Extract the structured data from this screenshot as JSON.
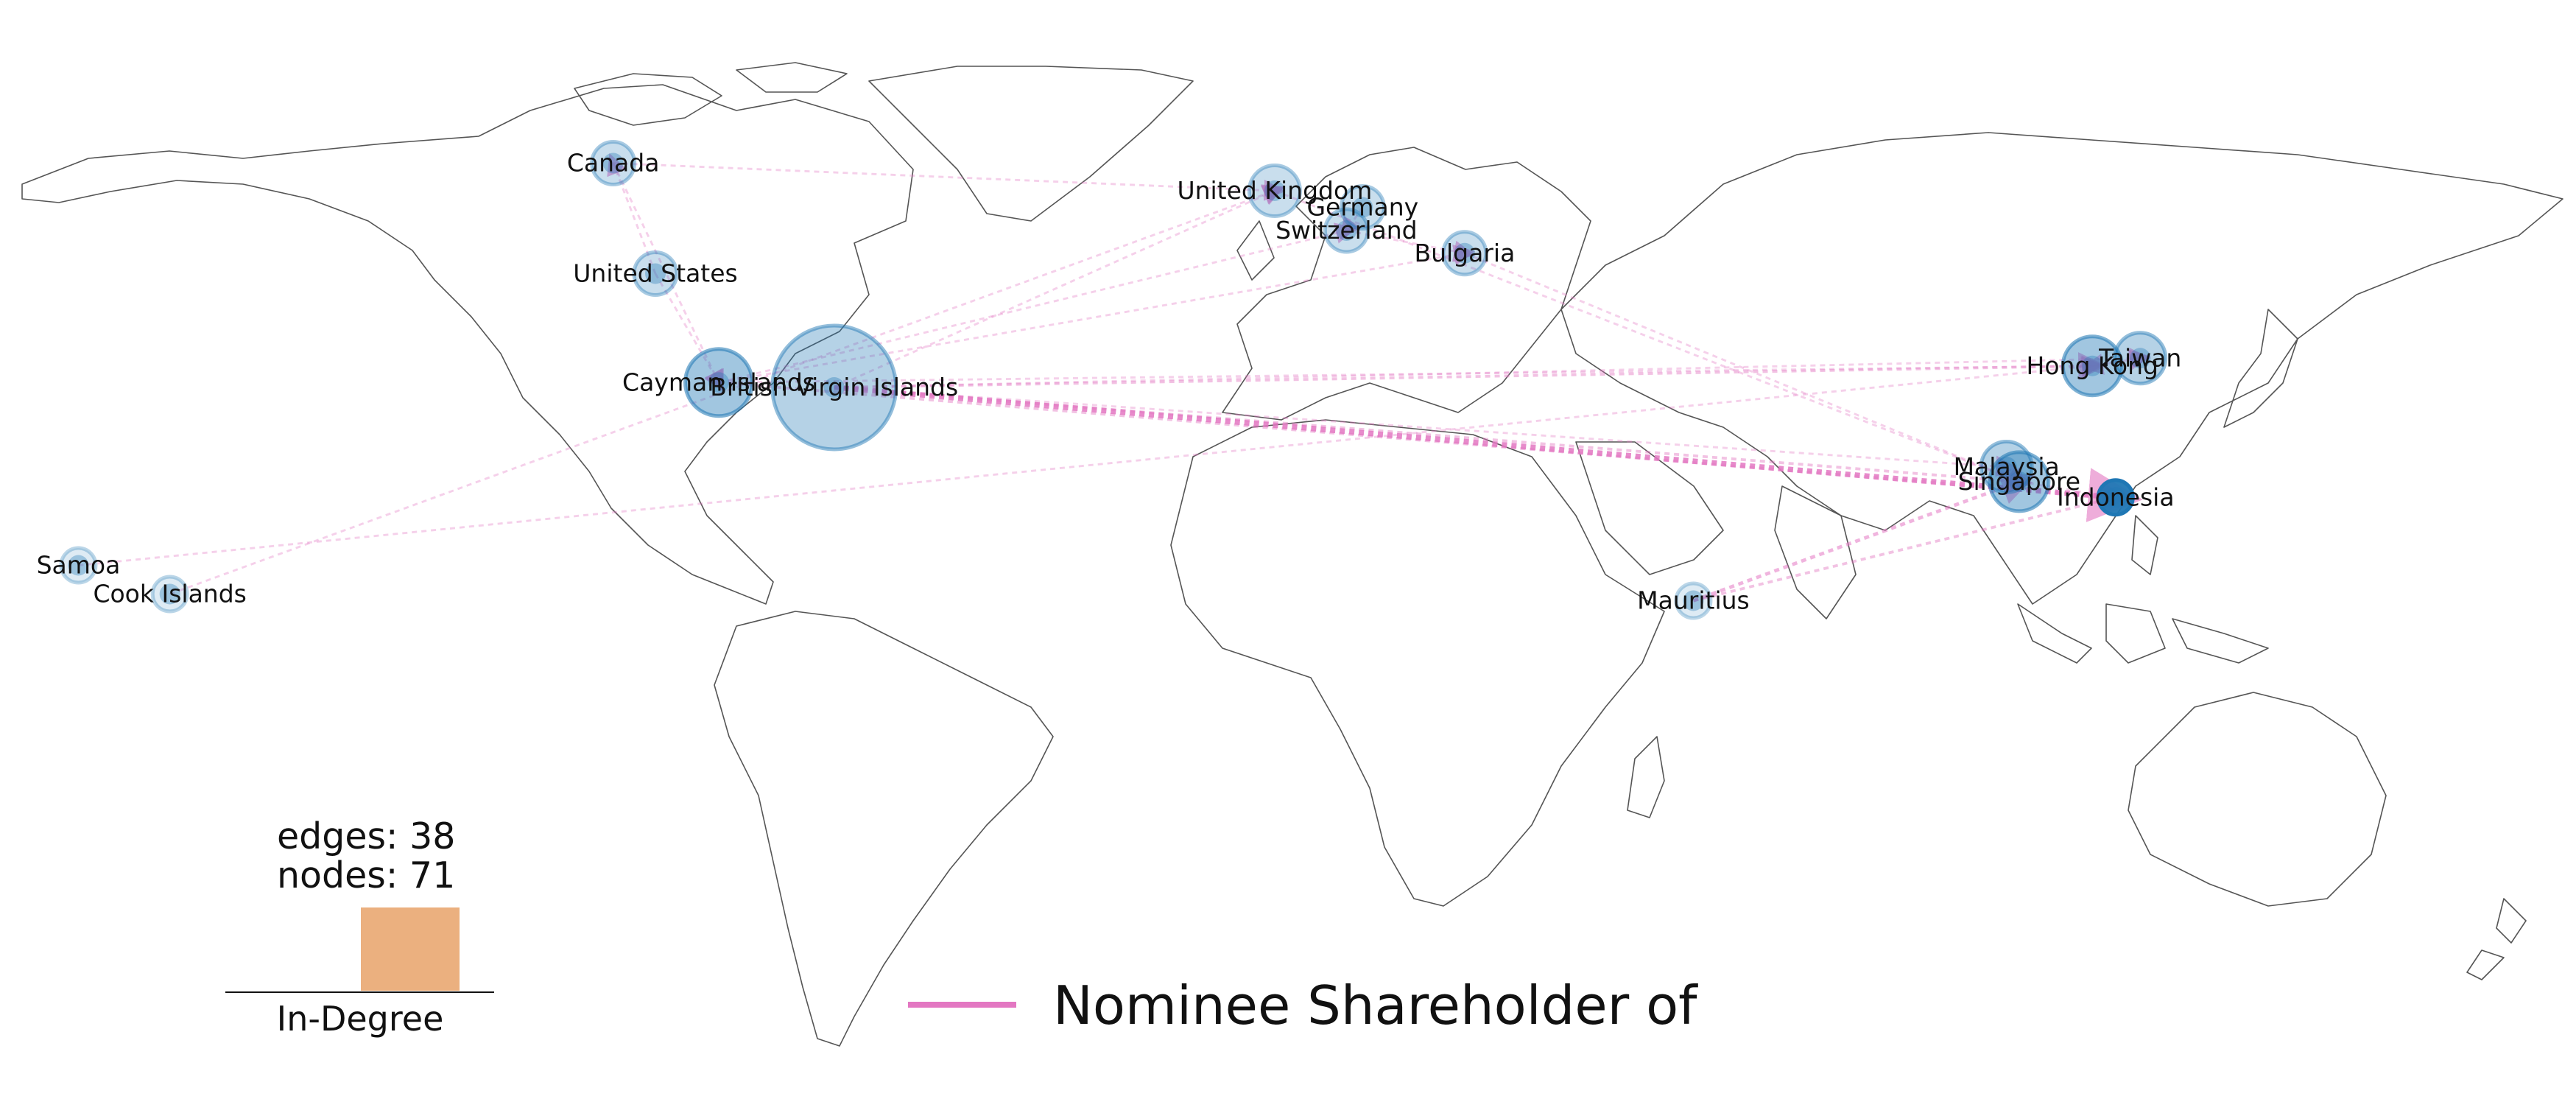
{
  "stats": {
    "edges_text": "edges: 38",
    "nodes_text": "nodes: 71",
    "histogram_label": "In-Degree"
  },
  "legend": {
    "label": "Nominee Shareholder of",
    "edge_color": "#e377c2"
  },
  "colors": {
    "node": "#1f77b4",
    "edge": "#e377c2",
    "histogram_bar": "#ebb07f",
    "coastline": "#555555"
  },
  "nodes": [
    {
      "id": "canada",
      "label": "Canada",
      "lon": -96,
      "lat": 59,
      "in_degree": 1,
      "out_degree": 2
    },
    {
      "id": "united-states",
      "label": "United States",
      "lon": -90,
      "lat": 39,
      "in_degree": 1,
      "out_degree": 2
    },
    {
      "id": "cayman-islands",
      "label": "Cayman Islands",
      "lon": -81,
      "lat": 19.3,
      "in_degree": 3,
      "out_degree": 5
    },
    {
      "id": "british-virgin-islands",
      "label": "British Virgin Islands",
      "lon": -64.6,
      "lat": 18.4,
      "in_degree": 2,
      "out_degree": 12
    },
    {
      "id": "united-kingdom",
      "label": "United Kingdom",
      "lon": -2,
      "lat": 54,
      "in_degree": 1,
      "out_degree": 3
    },
    {
      "id": "germany",
      "label": "Germany",
      "lon": 10.5,
      "lat": 51,
      "in_degree": 1,
      "out_degree": 2
    },
    {
      "id": "switzerland",
      "label": "Switzerland",
      "lon": 8.2,
      "lat": 46.8,
      "in_degree": 1,
      "out_degree": 2
    },
    {
      "id": "bulgaria",
      "label": "Bulgaria",
      "lon": 25,
      "lat": 42.7,
      "in_degree": 1,
      "out_degree": 2
    },
    {
      "id": "hong-kong",
      "label": "Hong Kong",
      "lon": 114.2,
      "lat": 22.3,
      "in_degree": 3,
      "out_degree": 4
    },
    {
      "id": "taiwan",
      "label": "Taiwan",
      "lon": 121,
      "lat": 23.7,
      "in_degree": 2,
      "out_degree": 3
    },
    {
      "id": "malaysia",
      "label": "Malaysia",
      "lon": 102,
      "lat": 4,
      "in_degree": 2,
      "out_degree": 3
    },
    {
      "id": "singapore",
      "label": "Singapore",
      "lon": 103.8,
      "lat": 1.35,
      "in_degree": 3,
      "out_degree": 4
    },
    {
      "id": "indonesia",
      "label": "Indonesia",
      "lon": 117.5,
      "lat": -1.5,
      "in_degree": 9,
      "out_degree": 1
    },
    {
      "id": "samoa",
      "label": "Samoa",
      "lon": -172,
      "lat": -13.8,
      "in_degree": 0,
      "out_degree": 1
    },
    {
      "id": "cook-islands",
      "label": "Cook Islands",
      "lon": -159,
      "lat": -19,
      "in_degree": 0,
      "out_degree": 1
    },
    {
      "id": "mauritius",
      "label": "Mauritius",
      "lon": 57.5,
      "lat": -20.2,
      "in_degree": 0,
      "out_degree": 1
    }
  ],
  "edges": [
    {
      "source": "british-virgin-islands",
      "target": "indonesia",
      "count": 6
    },
    {
      "source": "british-virgin-islands",
      "target": "singapore",
      "count": 2
    },
    {
      "source": "british-virgin-islands",
      "target": "hong-kong",
      "count": 2
    },
    {
      "source": "british-virgin-islands",
      "target": "taiwan",
      "count": 1
    },
    {
      "source": "british-virgin-islands",
      "target": "malaysia",
      "count": 1
    },
    {
      "source": "british-virgin-islands",
      "target": "united-kingdom",
      "count": 1
    },
    {
      "source": "cayman-islands",
      "target": "indonesia",
      "count": 2
    },
    {
      "source": "cayman-islands",
      "target": "hong-kong",
      "count": 1
    },
    {
      "source": "cayman-islands",
      "target": "switzerland",
      "count": 1
    },
    {
      "source": "cayman-islands",
      "target": "bulgaria",
      "count": 1
    },
    {
      "source": "canada",
      "target": "united-kingdom",
      "count": 1
    },
    {
      "source": "canada",
      "target": "cayman-islands",
      "count": 1
    },
    {
      "source": "united-states",
      "target": "cayman-islands",
      "count": 1
    },
    {
      "source": "united-states",
      "target": "canada",
      "count": 1
    },
    {
      "source": "mauritius",
      "target": "singapore",
      "count": 3
    },
    {
      "source": "mauritius",
      "target": "indonesia",
      "count": 2
    },
    {
      "source": "samoa",
      "target": "hong-kong",
      "count": 1
    },
    {
      "source": "cook-islands",
      "target": "united-kingdom",
      "count": 1
    },
    {
      "source": "united-kingdom",
      "target": "singapore",
      "count": 1
    },
    {
      "source": "germany",
      "target": "switzerland",
      "count": 1
    },
    {
      "source": "switzerland",
      "target": "bulgaria",
      "count": 1
    },
    {
      "source": "bulgaria",
      "target": "singapore",
      "count": 1
    },
    {
      "source": "hong-kong",
      "target": "taiwan",
      "count": 1
    },
    {
      "source": "taiwan",
      "target": "hong-kong",
      "count": 1
    },
    {
      "source": "malaysia",
      "target": "singapore",
      "count": 1
    },
    {
      "source": "singapore",
      "target": "indonesia",
      "count": 1
    }
  ]
}
